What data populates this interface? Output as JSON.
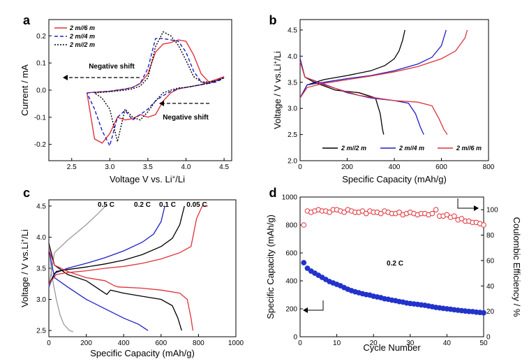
{
  "colors": {
    "black": "#000000",
    "blue": "#1f1fc8",
    "red": "#e0323a",
    "gray": "#9a9a9a",
    "cyclemarker": "#2233cc"
  },
  "chart_data": [
    {
      "id": "a",
      "letter": "a",
      "type": "line",
      "xlabel_main": "Voltage V vs. Li",
      "xlabel_sup": "+",
      "xlabel_tail": "/Li",
      "ylabel": "Current / mA",
      "xlim": [
        2.2,
        4.6
      ],
      "ylim": [
        -0.26,
        0.26
      ],
      "xticks": [
        "2.5",
        "3.0",
        "3.5",
        "4.0",
        "4.5"
      ],
      "xtick_values": [
        2.5,
        3.0,
        3.5,
        4.0,
        4.5
      ],
      "yticks": [
        "-0.2",
        "-0.1",
        "0.0",
        "0.1",
        "0.2"
      ],
      "ytick_values": [
        -0.2,
        -0.1,
        0.0,
        0.1,
        0.2
      ],
      "legend": [
        "2 m//6 m",
        "2 m//4 m",
        "2 m//2 m"
      ],
      "annotations": [
        "Negative shift",
        "Negative shift"
      ],
      "series": [
        {
          "name": "2 m//6 m",
          "color": "red",
          "style": "solid",
          "x": [
            2.7,
            2.8,
            2.9,
            3.0,
            3.1,
            3.2,
            3.3,
            3.4,
            3.5,
            3.6,
            3.7,
            3.8,
            3.9,
            4.0,
            4.1,
            4.2,
            4.3,
            4.4,
            4.5,
            4.4,
            4.3,
            4.2,
            4.1,
            4.0,
            3.9,
            3.8,
            3.7,
            3.6,
            3.5,
            3.4,
            3.3,
            3.2,
            3.1,
            3.0,
            2.9,
            2.8,
            2.7
          ],
          "y": [
            -0.01,
            -0.008,
            -0.006,
            -0.004,
            0.0,
            0.004,
            0.01,
            0.025,
            0.06,
            0.14,
            0.17,
            0.175,
            0.185,
            0.18,
            0.13,
            0.06,
            0.03,
            0.035,
            0.05,
            0.04,
            0.03,
            0.02,
            0.015,
            0.01,
            0.005,
            -0.01,
            -0.04,
            -0.09,
            -0.1,
            -0.09,
            -0.105,
            -0.11,
            -0.1,
            -0.16,
            -0.195,
            -0.18,
            -0.01
          ]
        },
        {
          "name": "2 m//4 m",
          "color": "blue",
          "style": "dash",
          "x": [
            2.7,
            2.8,
            2.9,
            3.0,
            3.1,
            3.2,
            3.3,
            3.4,
            3.5,
            3.6,
            3.7,
            3.8,
            3.9,
            4.0,
            4.1,
            4.2,
            4.3,
            4.4,
            4.5,
            4.4,
            4.3,
            4.2,
            4.1,
            4.0,
            3.9,
            3.8,
            3.7,
            3.6,
            3.5,
            3.4,
            3.3,
            3.2,
            3.1,
            3.0,
            2.9,
            2.8,
            2.7
          ],
          "y": [
            -0.01,
            -0.008,
            -0.006,
            -0.004,
            0.0,
            0.004,
            0.01,
            0.025,
            0.08,
            0.19,
            0.19,
            0.185,
            0.18,
            0.14,
            0.07,
            0.03,
            0.025,
            0.03,
            0.045,
            0.035,
            0.025,
            0.02,
            0.015,
            0.01,
            0.005,
            -0.005,
            -0.02,
            -0.04,
            -0.07,
            -0.09,
            -0.11,
            -0.075,
            -0.1,
            -0.205,
            -0.15,
            -0.07,
            -0.01
          ]
        },
        {
          "name": "2 m//2 m",
          "color": "black",
          "style": "dot",
          "x": [
            2.8,
            2.9,
            3.0,
            3.1,
            3.2,
            3.3,
            3.4,
            3.5,
            3.6,
            3.7,
            3.8,
            3.9,
            4.0,
            4.1,
            4.2,
            4.3,
            4.4,
            4.5,
            4.4,
            4.3,
            4.2,
            4.1,
            4.0,
            3.9,
            3.8,
            3.7,
            3.6,
            3.5,
            3.4,
            3.3,
            3.2,
            3.1,
            3.0,
            2.9,
            2.8
          ],
          "y": [
            -0.01,
            -0.008,
            -0.006,
            -0.003,
            0.0,
            0.005,
            0.015,
            0.045,
            0.16,
            0.215,
            0.2,
            0.165,
            0.11,
            0.05,
            0.03,
            0.03,
            0.035,
            0.045,
            0.035,
            0.025,
            0.02,
            0.015,
            0.01,
            0.008,
            0.0,
            -0.01,
            -0.04,
            -0.08,
            -0.11,
            -0.1,
            -0.07,
            -0.19,
            -0.07,
            -0.03,
            -0.01
          ]
        }
      ]
    },
    {
      "id": "b",
      "letter": "b",
      "type": "line",
      "xlabel": "Specific Capacity (mAh/g)",
      "ylabel_main": "Voltage / V vs.Li",
      "ylabel_sup": "+",
      "ylabel_tail": "/Li",
      "xlim": [
        0,
        800
      ],
      "ylim": [
        2.0,
        4.7
      ],
      "xticks": [
        "0",
        "200",
        "400",
        "600",
        "800"
      ],
      "xtick_values": [
        0,
        200,
        400,
        600,
        800
      ],
      "yticks": [
        "2.0",
        "2.5",
        "3.0",
        "3.5",
        "4.0",
        "4.5"
      ],
      "ytick_values": [
        2.0,
        2.5,
        3.0,
        3.5,
        4.0,
        4.5
      ],
      "legend": [
        "2 m//2 m",
        "2 m//4 m",
        "2 m//6 m"
      ],
      "series": [
        {
          "name": "2 m//2 m",
          "color": "black",
          "charge": {
            "x": [
              0,
              30,
              100,
              200,
              300,
              360,
              400,
              420,
              435,
              445
            ],
            "y": [
              3.2,
              3.45,
              3.55,
              3.63,
              3.72,
              3.82,
              3.95,
              4.1,
              4.3,
              4.5
            ]
          },
          "discharge": {
            "x": [
              0,
              20,
              60,
              150,
              250,
              320,
              340,
              350,
              355
            ],
            "y": [
              3.95,
              3.6,
              3.5,
              3.35,
              3.3,
              3.2,
              2.9,
              2.6,
              2.5
            ]
          }
        },
        {
          "name": "2 m//4 m",
          "color": "blue",
          "charge": {
            "x": [
              0,
              30,
              100,
              200,
              300,
              400,
              500,
              560,
              600,
              620
            ],
            "y": [
              3.2,
              3.45,
              3.5,
              3.57,
              3.63,
              3.72,
              3.85,
              3.98,
              4.2,
              4.5
            ]
          },
          "discharge": {
            "x": [
              0,
              20,
              80,
              200,
              300,
              400,
              460,
              490,
              510,
              525
            ],
            "y": [
              3.95,
              3.6,
              3.5,
              3.3,
              3.2,
              3.15,
              3.1,
              2.9,
              2.65,
              2.5
            ]
          }
        },
        {
          "name": "2 m//6 m",
          "color": "red",
          "charge": {
            "x": [
              0,
              30,
              100,
              200,
              300,
              400,
              500,
              600,
              660,
              700,
              710
            ],
            "y": [
              3.2,
              3.4,
              3.48,
              3.55,
              3.62,
              3.7,
              3.8,
              3.95,
              4.1,
              4.35,
              4.5
            ]
          },
          "discharge": {
            "x": [
              0,
              20,
              100,
              250,
              400,
              500,
              560,
              590,
              610,
              625
            ],
            "y": [
              3.9,
              3.6,
              3.45,
              3.25,
              3.15,
              3.12,
              3.05,
              2.8,
              2.6,
              2.5
            ]
          }
        }
      ]
    },
    {
      "id": "c",
      "letter": "c",
      "type": "line",
      "xlabel": "Specific Capacity (mAh/g)",
      "ylabel_main": "Voltage / V vs.Li",
      "ylabel_sup": "+",
      "ylabel_tail": "/Li",
      "xlim": [
        0,
        1000
      ],
      "ylim": [
        2.4,
        4.6
      ],
      "xticks": [
        "0",
        "200",
        "400",
        "600",
        "800",
        "1000"
      ],
      "xtick_values": [
        0,
        200,
        400,
        600,
        800,
        1000
      ],
      "yticks": [
        "2.5",
        "3.0",
        "3.5",
        "4.0",
        "4.5"
      ],
      "ytick_values": [
        2.5,
        3.0,
        3.5,
        4.0,
        4.5
      ],
      "series": [
        {
          "name": "0.5 C",
          "color": "gray",
          "charge": {
            "x": [
              0,
              30,
              100,
              200,
              270,
              310
            ],
            "y": [
              3.2,
              3.75,
              3.95,
              4.2,
              4.4,
              4.52
            ]
          },
          "discharge": {
            "x": [
              0,
              15,
              40,
              60,
              80,
              110,
              130
            ],
            "y": [
              3.9,
              3.4,
              3.0,
              2.75,
              2.6,
              2.5,
              2.48
            ]
          }
        },
        {
          "name": "0.2 C",
          "color": "blue",
          "charge": {
            "x": [
              0,
              30,
              100,
              200,
              300,
              400,
              500,
              560,
              600,
              620
            ],
            "y": [
              3.2,
              3.42,
              3.5,
              3.58,
              3.67,
              3.78,
              3.92,
              4.05,
              4.25,
              4.5
            ]
          },
          "discharge": {
            "x": [
              0,
              30,
              100,
              200,
              300,
              400,
              480,
              530
            ],
            "y": [
              3.8,
              3.35,
              3.2,
              3.0,
              2.85,
              2.7,
              2.6,
              2.5
            ]
          }
        },
        {
          "name": "0.1 C",
          "color": "black",
          "charge": {
            "x": [
              0,
              40,
              100,
              200,
              300,
              400,
              500,
              600,
              660,
              700,
              725
            ],
            "y": [
              3.25,
              3.45,
              3.48,
              3.52,
              3.57,
              3.63,
              3.72,
              3.85,
              3.98,
              4.2,
              4.5
            ]
          },
          "discharge": {
            "x": [
              0,
              30,
              100,
              200,
              290,
              310,
              330,
              400,
              500,
              600,
              660,
              690,
              710
            ],
            "y": [
              3.9,
              3.55,
              3.4,
              3.3,
              3.12,
              3.08,
              3.15,
              3.1,
              3.05,
              3.0,
              2.9,
              2.7,
              2.5
            ]
          }
        },
        {
          "name": "0.05 C",
          "color": "red",
          "charge": {
            "x": [
              0,
              40,
              100,
              200,
              300,
              400,
              500,
              600,
              700,
              760,
              790,
              820,
              850
            ],
            "y": [
              3.25,
              3.4,
              3.43,
              3.46,
              3.5,
              3.53,
              3.58,
              3.65,
              3.75,
              3.85,
              4.3,
              4.5,
              4.5
            ]
          },
          "discharge": {
            "x": [
              0,
              30,
              100,
              200,
              300,
              350,
              370,
              500,
              600,
              700,
              740,
              760,
              770
            ],
            "y": [
              3.8,
              3.55,
              3.45,
              3.35,
              3.3,
              3.22,
              3.2,
              3.18,
              3.15,
              3.1,
              3.0,
              2.7,
              2.5
            ]
          }
        }
      ]
    },
    {
      "id": "d",
      "letter": "d",
      "type": "scatter",
      "xlabel": "Cycle Number",
      "ylabel": "Specific Capacity (mAh/g)",
      "ylabel_right": "Coulombic Efficiency / %",
      "annotation": "0.2 C",
      "xlim": [
        0,
        50
      ],
      "ylim": [
        0,
        1000
      ],
      "ylim_right": [
        0,
        110
      ],
      "xticks": [
        "0",
        "10",
        "20",
        "30",
        "40",
        "50"
      ],
      "xtick_values": [
        0,
        10,
        20,
        30,
        40,
        50
      ],
      "yticks": [
        "0",
        "200",
        "400",
        "600",
        "800",
        "1000"
      ],
      "ytick_values": [
        0,
        200,
        400,
        600,
        800,
        1000
      ],
      "yticks_right": [
        "0",
        "20",
        "40",
        "60",
        "80",
        "100"
      ],
      "ytick_right_values": [
        0,
        20,
        40,
        60,
        80,
        100
      ],
      "series": [
        {
          "name": "Specific Capacity",
          "axis": "left",
          "marker": "filled-circle",
          "color": "cyclemarker",
          "x": [
            1,
            2,
            3,
            4,
            5,
            6,
            7,
            8,
            9,
            10,
            11,
            12,
            13,
            14,
            15,
            16,
            17,
            18,
            19,
            20,
            21,
            22,
            23,
            24,
            25,
            26,
            27,
            28,
            29,
            30,
            31,
            32,
            33,
            34,
            35,
            36,
            37,
            38,
            39,
            40,
            41,
            42,
            43,
            44,
            45,
            46,
            47,
            48,
            49,
            50
          ],
          "y": [
            530,
            490,
            470,
            455,
            440,
            425,
            410,
            395,
            385,
            375,
            365,
            352,
            340,
            330,
            322,
            315,
            308,
            302,
            298,
            290,
            285,
            280,
            272,
            268,
            262,
            258,
            252,
            248,
            242,
            238,
            235,
            232,
            228,
            225,
            220,
            215,
            210,
            207,
            203,
            200,
            197,
            193,
            190,
            187,
            184,
            181,
            180,
            176,
            174,
            171
          ]
        },
        {
          "name": "Coulombic Efficiency",
          "axis": "right",
          "marker": "open-circle",
          "color": "red",
          "x": [
            1,
            2,
            3,
            4,
            5,
            6,
            7,
            8,
            9,
            10,
            11,
            12,
            13,
            14,
            15,
            16,
            17,
            18,
            19,
            20,
            21,
            22,
            23,
            24,
            25,
            26,
            27,
            28,
            29,
            30,
            31,
            32,
            33,
            34,
            35,
            36,
            37,
            38,
            39,
            40,
            41,
            42,
            43,
            44,
            45,
            46,
            47,
            48,
            49,
            50
          ],
          "y": [
            88,
            99,
            98,
            99,
            100,
            99,
            99,
            98,
            100,
            100,
            99,
            98,
            100,
            99,
            98,
            98,
            99,
            97,
            99,
            98,
            98,
            97,
            99,
            98,
            97,
            97,
            98,
            96,
            97,
            98,
            97,
            96,
            97,
            97,
            96,
            97,
            100,
            95,
            95,
            96,
            94,
            95,
            92,
            93,
            91,
            91,
            90,
            90,
            89,
            88
          ]
        }
      ]
    }
  ]
}
